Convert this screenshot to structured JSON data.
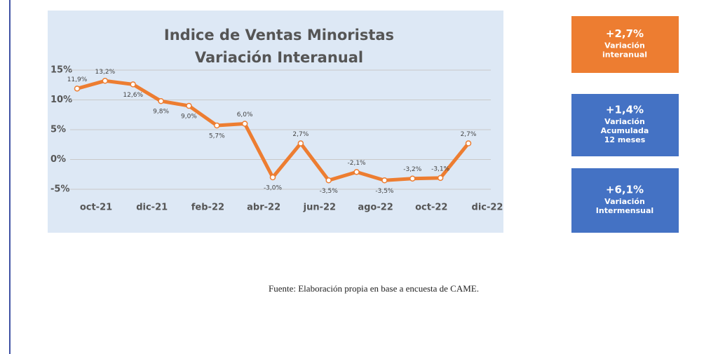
{
  "chart_data": {
    "type": "line",
    "title": "Indice de Ventas Minoristas",
    "subtitle": "Variación Interanual",
    "categories": [
      "oct-21",
      null,
      "dic-21",
      null,
      "feb-22",
      null,
      "abr-22",
      null,
      "jun-22",
      null,
      "ago-22",
      null,
      "oct-22",
      null,
      "dic-22"
    ],
    "series": [
      {
        "color": "#ed7d31",
        "values": [
          11.9,
          13.2,
          12.6,
          9.8,
          9.0,
          5.7,
          6.0,
          -3.0,
          2.7,
          -3.5,
          -2.1,
          -3.5,
          -3.2,
          -3.1,
          2.7
        ],
        "value_labels": [
          "11,9%",
          "13,2%",
          "12,6%",
          "9,8%",
          "9,0%",
          "5,7%",
          "6,0%",
          "-3,0%",
          "2,7%",
          "-3,5%",
          "-2,1%",
          "-3,5%",
          "-3,2%",
          "-3,1%",
          "2,7%"
        ]
      }
    ],
    "ylim": [
      -5,
      15
    ],
    "yticks": [
      {
        "value": -5,
        "label": "-5%"
      },
      {
        "value": 0,
        "label": "0%"
      },
      {
        "value": 5,
        "label": "5%"
      },
      {
        "value": 10,
        "label": "10%"
      },
      {
        "value": 15,
        "label": "15%"
      }
    ],
    "grid": true
  },
  "cards": [
    {
      "value": "+2,7%",
      "lines": [
        "Variación",
        "interanual"
      ],
      "color": "#ed7d31"
    },
    {
      "value": "+1,4%",
      "lines": [
        "Variación",
        "Acumulada",
        "12 meses"
      ],
      "color": "#4472c4"
    },
    {
      "value": "+6,1%",
      "lines": [
        "Variación",
        "Intermensual"
      ],
      "color": "#4472c4"
    }
  ],
  "source": "Fuente: Elaboración propia en base a encuesta de CAME."
}
